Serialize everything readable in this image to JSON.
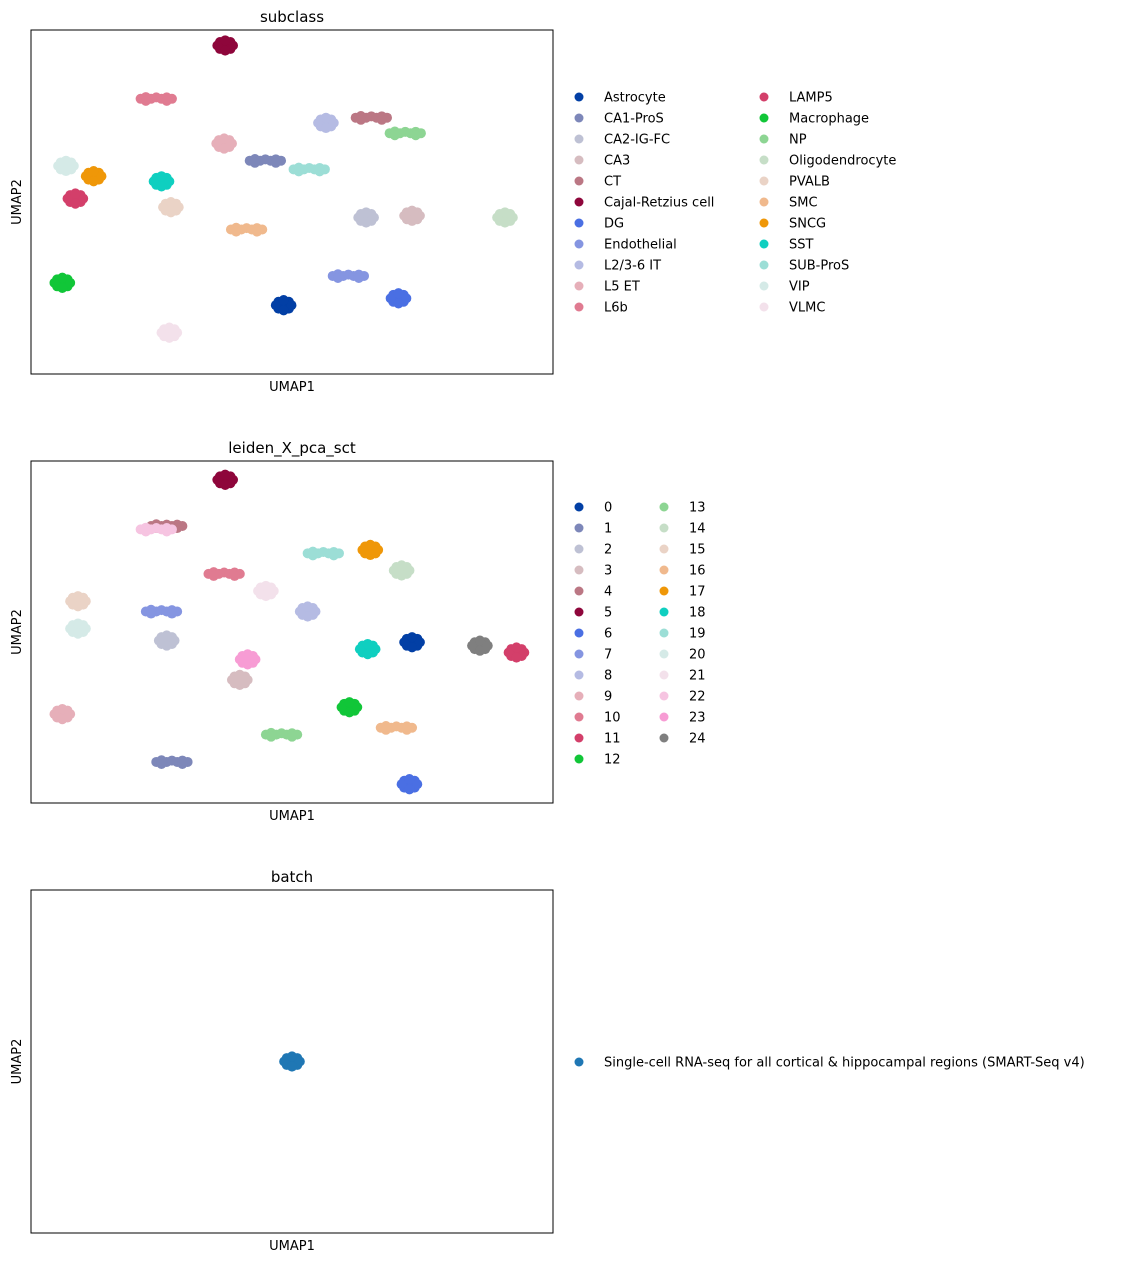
{
  "chart_data": [
    {
      "type": "scatter",
      "title": "subclass",
      "xlabel": "UMAP1",
      "ylabel": "UMAP2",
      "grid": false,
      "legend": {
        "placement": "right",
        "columns": 2
      },
      "series": [
        {
          "name": "Astrocyte",
          "color": "#023fa5",
          "points": [
            [
              0.484,
              0.2
            ]
          ]
        },
        {
          "name": "CA1-ProS",
          "color": "#7d87b9",
          "points": [
            [
              0.449,
              0.62
            ]
          ]
        },
        {
          "name": "CA2-IG-FC",
          "color": "#bec1d4",
          "points": [
            [
              0.642,
              0.455
            ]
          ]
        },
        {
          "name": "CA3",
          "color": "#d6bcc0",
          "points": [
            [
              0.73,
              0.46
            ]
          ]
        },
        {
          "name": "CT",
          "color": "#bb7784",
          "points": [
            [
              0.652,
              0.745
            ]
          ]
        },
        {
          "name": "Cajal-Retzius cell",
          "color": "#8e063b",
          "points": [
            [
              0.372,
              0.955
            ]
          ]
        },
        {
          "name": "DG",
          "color": "#4a6fe3",
          "points": [
            [
              0.704,
              0.22
            ]
          ]
        },
        {
          "name": "Endothelial",
          "color": "#8595e1",
          "points": [
            [
              0.608,
              0.285
            ]
          ]
        },
        {
          "name": "L2/3-6 IT",
          "color": "#b5bbe3",
          "points": [
            [
              0.565,
              0.73
            ]
          ]
        },
        {
          "name": "L5 ET",
          "color": "#e6afb9",
          "points": [
            [
              0.37,
              0.67
            ]
          ]
        },
        {
          "name": "L6b",
          "color": "#e07b91",
          "points": [
            [
              0.24,
              0.8
            ]
          ]
        },
        {
          "name": "LAMP5",
          "color": "#d33f6a",
          "points": [
            [
              0.085,
              0.51
            ]
          ]
        },
        {
          "name": "Macrophage",
          "color": "#11c638",
          "points": [
            [
              0.06,
              0.265
            ]
          ]
        },
        {
          "name": "NP",
          "color": "#8dd593",
          "points": [
            [
              0.717,
              0.7
            ]
          ]
        },
        {
          "name": "Oligodendrocyte",
          "color": "#c6dec7",
          "points": [
            [
              0.908,
              0.455
            ]
          ]
        },
        {
          "name": "PVALB",
          "color": "#ead3c6",
          "points": [
            [
              0.268,
              0.485
            ]
          ]
        },
        {
          "name": "SMC",
          "color": "#f0b98d",
          "points": [
            [
              0.413,
              0.42
            ]
          ]
        },
        {
          "name": "SNCG",
          "color": "#ef9708",
          "points": [
            [
              0.12,
              0.575
            ]
          ]
        },
        {
          "name": "SST",
          "color": "#0fcfc0",
          "points": [
            [
              0.25,
              0.56
            ]
          ]
        },
        {
          "name": "SUB-ProS",
          "color": "#9cded6",
          "points": [
            [
              0.533,
              0.595
            ]
          ]
        },
        {
          "name": "VIP",
          "color": "#d5eae7",
          "points": [
            [
              0.067,
              0.605
            ]
          ]
        },
        {
          "name": "VLMC",
          "color": "#f3e1eb",
          "points": [
            [
              0.265,
              0.12
            ]
          ]
        }
      ]
    },
    {
      "type": "scatter",
      "title": "leiden_X_pca_sct",
      "xlabel": "UMAP1",
      "ylabel": "UMAP2",
      "grid": false,
      "legend": {
        "placement": "right",
        "columns": 2
      },
      "series": [
        {
          "name": "0",
          "color": "#023fa5",
          "points": [
            [
              0.73,
              0.47
            ]
          ]
        },
        {
          "name": "1",
          "color": "#7d87b9",
          "points": [
            [
              0.27,
              0.12
            ]
          ]
        },
        {
          "name": "2",
          "color": "#bec1d4",
          "points": [
            [
              0.26,
              0.475
            ]
          ]
        },
        {
          "name": "3",
          "color": "#d6bcc0",
          "points": [
            [
              0.4,
              0.36
            ]
          ]
        },
        {
          "name": "4",
          "color": "#bb7784",
          "points": [
            [
              0.26,
              0.81
            ]
          ]
        },
        {
          "name": "5",
          "color": "#8e063b",
          "points": [
            [
              0.372,
              0.945
            ]
          ]
        },
        {
          "name": "6",
          "color": "#4a6fe3",
          "points": [
            [
              0.725,
              0.055
            ]
          ]
        },
        {
          "name": "7",
          "color": "#8595e1",
          "points": [
            [
              0.25,
              0.56
            ]
          ]
        },
        {
          "name": "8",
          "color": "#b5bbe3",
          "points": [
            [
              0.53,
              0.56
            ]
          ]
        },
        {
          "name": "9",
          "color": "#e6afb9",
          "points": [
            [
              0.06,
              0.26
            ]
          ]
        },
        {
          "name": "10",
          "color": "#e07b91",
          "points": [
            [
              0.37,
              0.67
            ]
          ]
        },
        {
          "name": "11",
          "color": "#d33f6a",
          "points": [
            [
              0.93,
              0.44
            ]
          ]
        },
        {
          "name": "12",
          "color": "#11c638",
          "points": [
            [
              0.61,
              0.28
            ]
          ]
        },
        {
          "name": "13",
          "color": "#8dd593",
          "points": [
            [
              0.48,
              0.2
            ]
          ]
        },
        {
          "name": "14",
          "color": "#c6dec7",
          "points": [
            [
              0.71,
              0.68
            ]
          ]
        },
        {
          "name": "15",
          "color": "#ead3c6",
          "points": [
            [
              0.09,
              0.59
            ]
          ]
        },
        {
          "name": "16",
          "color": "#f0b98d",
          "points": [
            [
              0.7,
              0.22
            ]
          ]
        },
        {
          "name": "17",
          "color": "#ef9708",
          "points": [
            [
              0.65,
              0.74
            ]
          ]
        },
        {
          "name": "18",
          "color": "#0fcfc0",
          "points": [
            [
              0.645,
              0.45
            ]
          ]
        },
        {
          "name": "19",
          "color": "#9cded6",
          "points": [
            [
              0.56,
              0.73
            ]
          ]
        },
        {
          "name": "20",
          "color": "#d5eae7",
          "points": [
            [
              0.09,
              0.51
            ]
          ]
        },
        {
          "name": "21",
          "color": "#f3e1eb",
          "points": [
            [
              0.45,
              0.62
            ]
          ]
        },
        {
          "name": "22",
          "color": "#f6c4e1",
          "points": [
            [
              0.24,
              0.8
            ]
          ]
        },
        {
          "name": "23",
          "color": "#f79cd4",
          "points": [
            [
              0.415,
              0.42
            ]
          ]
        },
        {
          "name": "24",
          "color": "#7f7f7f",
          "points": [
            [
              0.86,
              0.46
            ]
          ]
        }
      ]
    },
    {
      "type": "scatter",
      "title": "batch",
      "xlabel": "UMAP1",
      "ylabel": "UMAP2",
      "grid": false,
      "legend": {
        "placement": "right",
        "columns": 1
      },
      "series": [
        {
          "name": "Single-cell RNA-seq for all cortical & hippocampal regions (SMART-Seq v4)",
          "color": "#1f77b4",
          "points": [
            [
              0.5,
              0.5
            ]
          ]
        }
      ]
    }
  ]
}
